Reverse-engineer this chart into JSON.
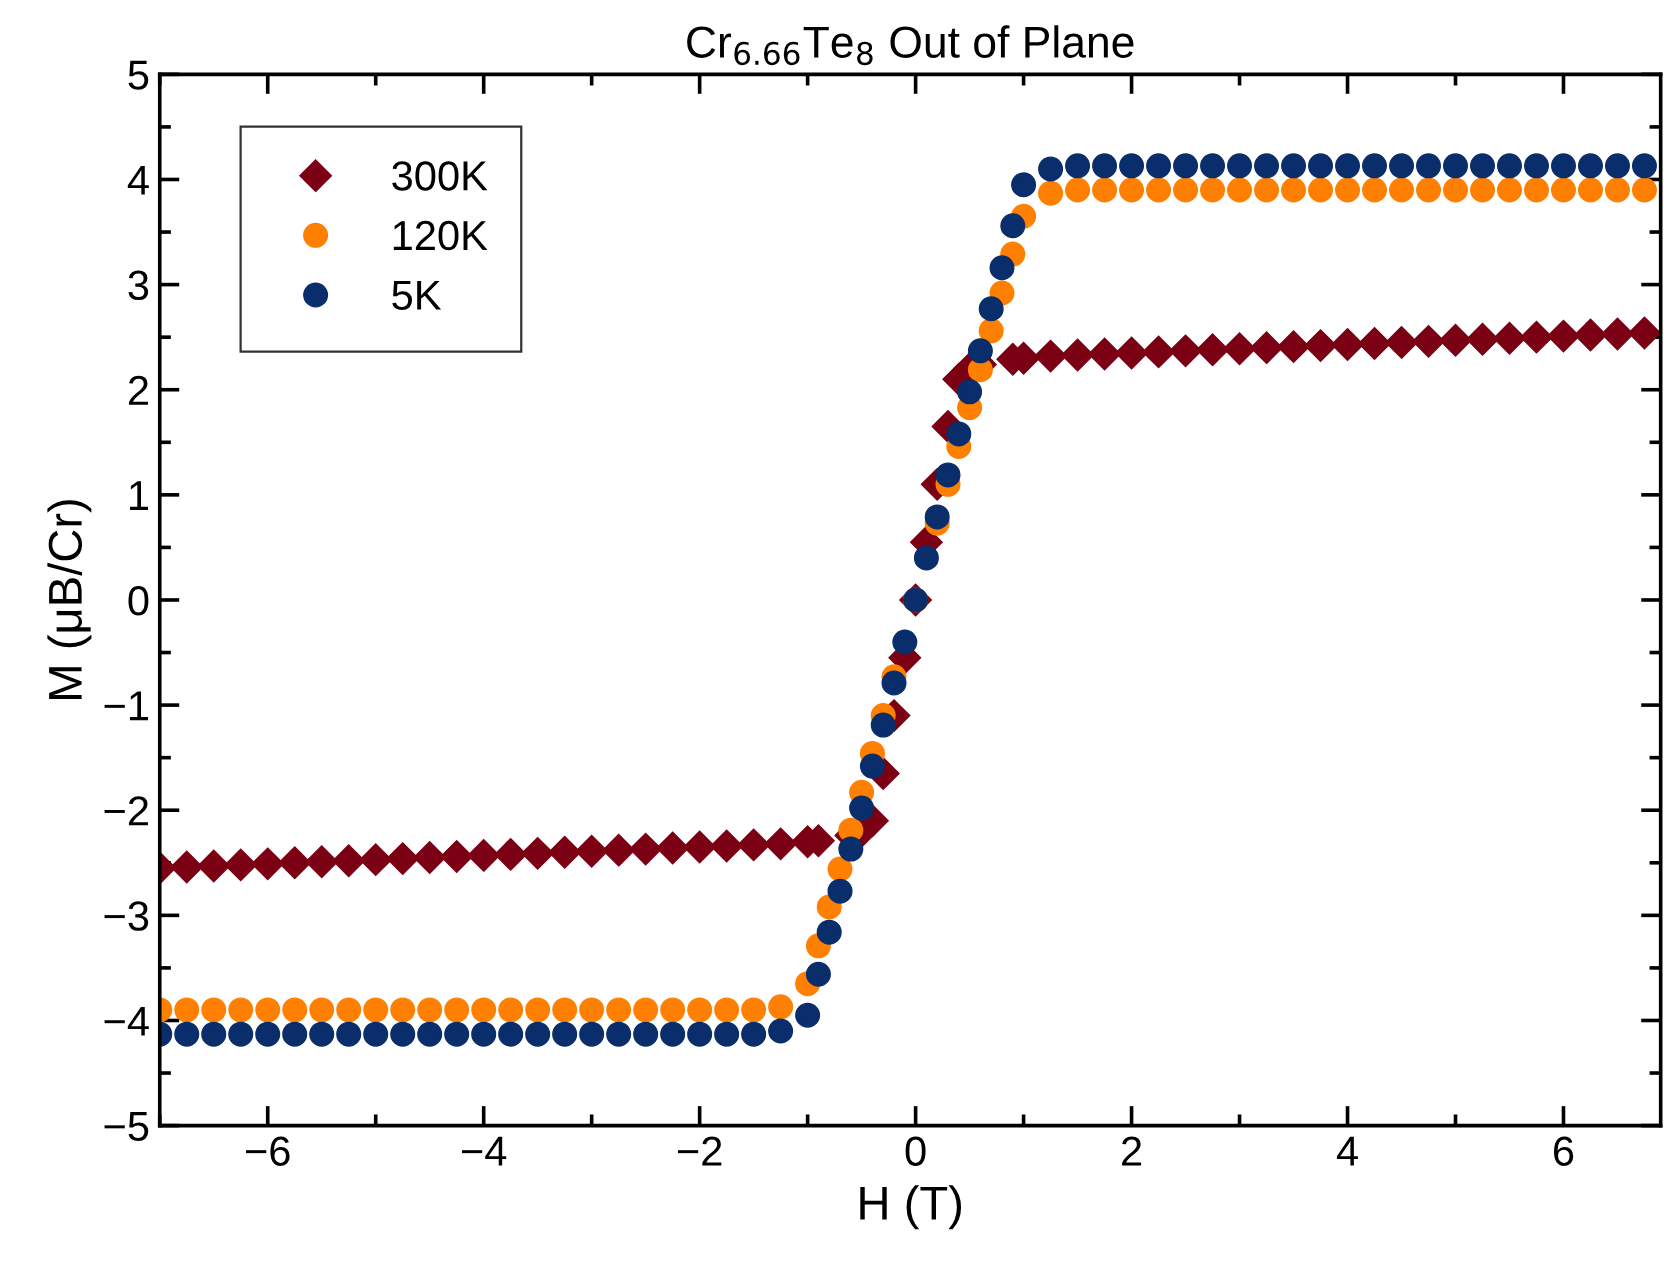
{
  "chart_data": {
    "type": "scatter",
    "title": "Cr$_{6.66}$Te$_{8}$ Out of Plane",
    "xlabel": "H (T)",
    "ylabel": "M (μB/Cr)",
    "x": [
      -7,
      -6.75,
      -6.5,
      -6.25,
      -6,
      -5.75,
      -5.5,
      -5.25,
      -5,
      -4.75,
      -4.5,
      -4.25,
      -4,
      -3.75,
      -3.5,
      -3.25,
      -3,
      -2.75,
      -2.5,
      -2.25,
      -2,
      -1.75,
      -1.5,
      -1.25,
      -1,
      -0.9,
      -0.8,
      -0.7,
      -0.6,
      -0.5,
      -0.4,
      -0.3,
      -0.2,
      -0.1,
      0,
      0.1,
      0.2,
      0.3,
      0.4,
      0.5,
      0.6,
      0.7,
      0.8,
      0.9,
      1,
      1.25,
      1.5,
      1.75,
      2,
      2.25,
      2.5,
      2.75,
      3,
      3.25,
      3.5,
      3.75,
      4,
      4.25,
      4.5,
      4.75,
      5,
      5.25,
      5.5,
      5.75,
      6,
      6.25,
      6.5,
      6.75
    ],
    "series": [
      {
        "name": "300K",
        "color": "#7b0014",
        "marker": "diamond",
        "values": [
          -2.55,
          -2.54,
          -2.53,
          -2.52,
          -2.51,
          -2.5,
          -2.49,
          -2.48,
          -2.47,
          -2.46,
          -2.45,
          -2.44,
          -2.43,
          -2.42,
          -2.41,
          -2.4,
          -2.39,
          -2.38,
          -2.37,
          -2.36,
          -2.35,
          -2.34,
          -2.33,
          -2.32,
          -2.3,
          -2.29,
          null,
          null,
          -2.24,
          -2.2,
          -2.1,
          -1.65,
          -1.1,
          -0.55,
          0,
          0.55,
          1.1,
          1.65,
          2.1,
          2.2,
          2.24,
          null,
          null,
          2.29,
          2.3,
          2.32,
          2.33,
          2.34,
          2.35,
          2.36,
          2.37,
          2.38,
          2.39,
          2.4,
          2.41,
          2.42,
          2.43,
          2.44,
          2.45,
          2.46,
          2.47,
          2.48,
          2.49,
          2.5,
          2.51,
          2.52,
          2.53,
          2.54
        ]
      },
      {
        "name": "120K",
        "color": "#ff8000",
        "marker": "circle",
        "values": [
          -3.9,
          -3.9,
          -3.9,
          -3.9,
          -3.9,
          -3.9,
          -3.9,
          -3.9,
          -3.9,
          -3.9,
          -3.9,
          -3.9,
          -3.9,
          -3.9,
          -3.9,
          -3.9,
          -3.9,
          -3.9,
          -3.9,
          -3.9,
          -3.9,
          -3.9,
          -3.9,
          -3.87,
          -3.65,
          -3.29,
          -2.92,
          -2.56,
          -2.19,
          -1.83,
          -1.46,
          -1.1,
          -0.73,
          null,
          0,
          null,
          0.73,
          1.1,
          1.46,
          1.83,
          2.19,
          2.56,
          2.92,
          3.29,
          3.65,
          3.87,
          3.9,
          3.9,
          3.9,
          3.9,
          3.9,
          3.9,
          3.9,
          3.9,
          3.9,
          3.9,
          3.9,
          3.9,
          3.9,
          3.9,
          3.9,
          3.9,
          3.9,
          3.9,
          3.9,
          3.9,
          3.9,
          3.9
        ]
      },
      {
        "name": "5K",
        "color": "#0a2e6b",
        "marker": "circle",
        "values": [
          -4.13,
          -4.13,
          -4.13,
          -4.13,
          -4.13,
          -4.13,
          -4.13,
          -4.13,
          -4.13,
          -4.13,
          -4.13,
          -4.13,
          -4.13,
          -4.13,
          -4.13,
          -4.13,
          -4.13,
          -4.13,
          -4.13,
          -4.13,
          -4.13,
          -4.13,
          -4.13,
          -4.1,
          -3.95,
          -3.56,
          -3.16,
          -2.77,
          -2.37,
          -1.98,
          -1.58,
          -1.19,
          -0.79,
          -0.4,
          0,
          0.4,
          0.79,
          1.19,
          1.58,
          1.98,
          2.37,
          2.77,
          3.16,
          3.56,
          3.95,
          4.1,
          4.13,
          4.13,
          4.13,
          4.13,
          4.13,
          4.13,
          4.13,
          4.13,
          4.13,
          4.13,
          4.13,
          4.13,
          4.13,
          4.13,
          4.13,
          4.13,
          4.13,
          4.13,
          4.13,
          4.13,
          4.13,
          4.13
        ]
      }
    ],
    "xlim": [
      -7,
      6.9
    ],
    "xticks": [
      -6,
      -4,
      -2,
      0,
      2,
      4,
      6
    ],
    "ylim": [
      -5,
      5
    ],
    "yticks": [
      -5,
      -4,
      -3,
      -2,
      -1,
      0,
      1,
      2,
      3,
      4,
      5
    ],
    "grid": false,
    "legend": "top left"
  }
}
